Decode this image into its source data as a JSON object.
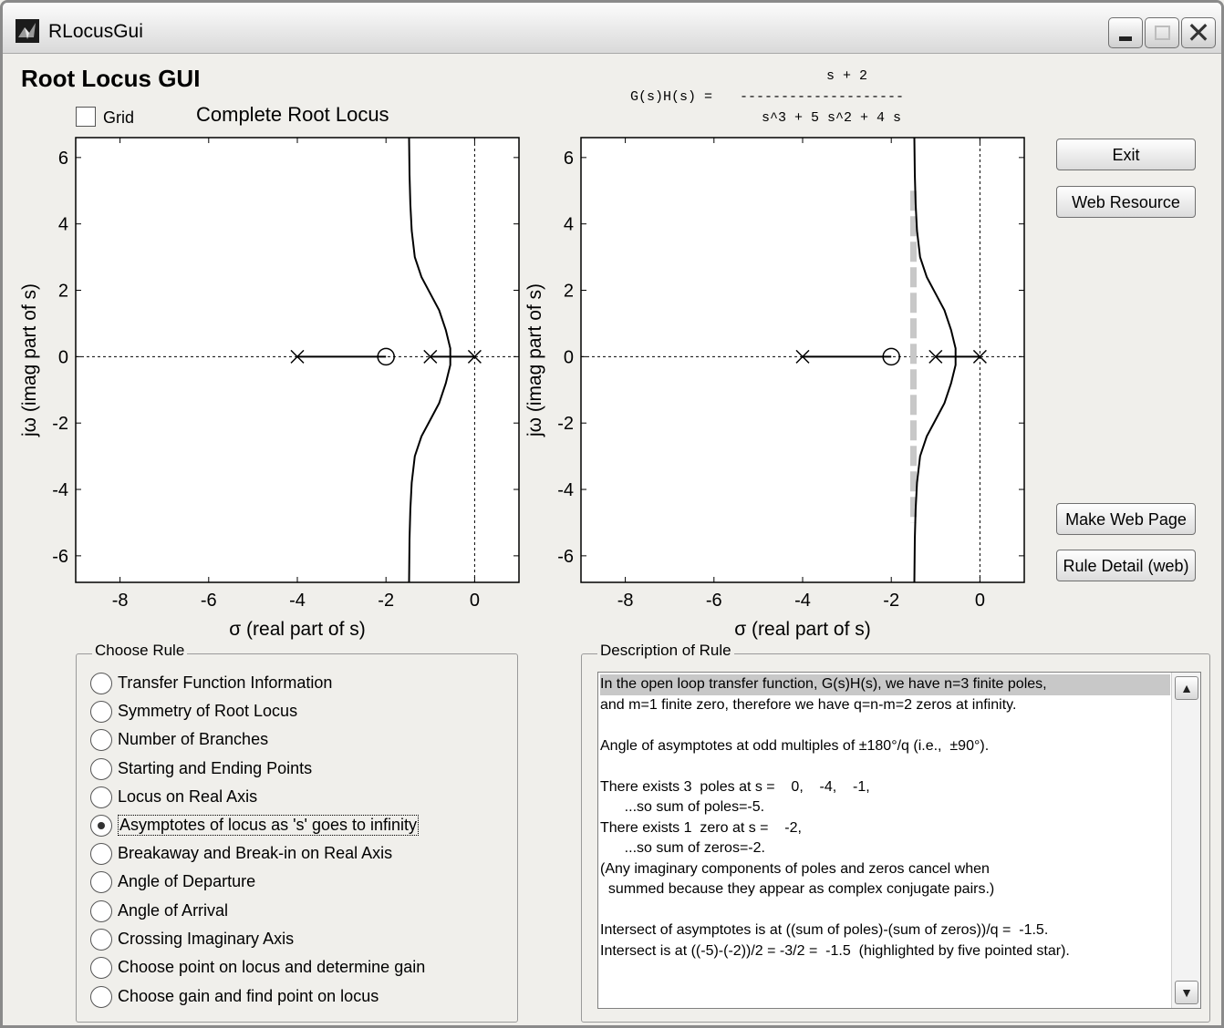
{
  "window": {
    "title": "RLocusGui",
    "controls": {
      "minimize": "minimize-icon",
      "maximize": "maximize-icon",
      "close": "close-icon"
    }
  },
  "header": {
    "title": "Root Locus GUI",
    "grid_label": "Grid",
    "grid_checked": false,
    "plot_heading": "Complete Root Locus",
    "transfer_function": {
      "label": "G(s)H(s) =",
      "numerator": "s + 2",
      "bar": "--------------------",
      "denominator": "s^3 + 5 s^2 + 4 s"
    }
  },
  "plot_labels": {
    "xlabel": "σ (real part of s)",
    "ylabel": "jω (imag part of s)"
  },
  "chart_data": [
    {
      "type": "line",
      "title": "",
      "xlabel": "σ (real part of s)",
      "ylabel": "jω (imag part of s)",
      "xlim": [
        -9,
        1
      ],
      "ylim": [
        -6.8,
        6.6
      ],
      "xticks": [
        -8,
        -6,
        -4,
        -2,
        0
      ],
      "yticks": [
        6,
        4,
        2,
        0,
        -2,
        -4,
        -6
      ],
      "grid": false,
      "poles": [
        [
          0,
          0
        ],
        [
          -4,
          0
        ],
        [
          -1,
          0
        ]
      ],
      "zeros": [
        [
          -2,
          0
        ]
      ],
      "branches": [
        {
          "x": [
            -4,
            -2
          ],
          "y": [
            0,
            0
          ]
        },
        {
          "x": [
            -1,
            -0.55
          ],
          "y": [
            0,
            0
          ]
        },
        {
          "x": [
            0,
            -0.55
          ],
          "y": [
            0,
            0
          ]
        },
        {
          "x": [
            -0.55,
            -0.55,
            -0.65,
            -0.8,
            -1.0,
            -1.2,
            -1.35,
            -1.42,
            -1.45,
            -1.47,
            -1.48
          ],
          "y": [
            0,
            0.25,
            0.8,
            1.4,
            1.9,
            2.4,
            3.0,
            3.8,
            4.6,
            5.5,
            6.6
          ]
        },
        {
          "x": [
            -0.55,
            -0.55,
            -0.65,
            -0.8,
            -1.0,
            -1.2,
            -1.35,
            -1.42,
            -1.45,
            -1.47,
            -1.48
          ],
          "y": [
            0,
            -0.25,
            -0.8,
            -1.4,
            -1.9,
            -2.4,
            -3.0,
            -3.8,
            -4.6,
            -5.5,
            -6.8
          ]
        }
      ]
    },
    {
      "type": "line",
      "title": "",
      "xlabel": "σ (real part of s)",
      "ylabel": "jω (imag part of s)",
      "xlim": [
        -9,
        1
      ],
      "ylim": [
        -6.8,
        6.6
      ],
      "xticks": [
        -8,
        -6,
        -4,
        -2,
        0
      ],
      "yticks": [
        6,
        4,
        2,
        0,
        -2,
        -4,
        -6
      ],
      "grid": false,
      "poles": [
        [
          0,
          0
        ],
        [
          -4,
          0
        ],
        [
          -1,
          0
        ]
      ],
      "zeros": [
        [
          -2,
          0
        ]
      ],
      "asymptote_x": -1.5,
      "asymptote_ylim": [
        -5,
        5
      ],
      "branches": [
        {
          "x": [
            -4,
            -2
          ],
          "y": [
            0,
            0
          ]
        },
        {
          "x": [
            -1,
            -0.55
          ],
          "y": [
            0,
            0
          ]
        },
        {
          "x": [
            0,
            -0.55
          ],
          "y": [
            0,
            0
          ]
        },
        {
          "x": [
            -0.55,
            -0.55,
            -0.65,
            -0.8,
            -1.0,
            -1.2,
            -1.35,
            -1.42,
            -1.45,
            -1.47,
            -1.48
          ],
          "y": [
            0,
            0.25,
            0.8,
            1.4,
            1.9,
            2.4,
            3.0,
            3.8,
            4.6,
            5.5,
            6.6
          ]
        },
        {
          "x": [
            -0.55,
            -0.55,
            -0.65,
            -0.8,
            -1.0,
            -1.2,
            -1.35,
            -1.42,
            -1.45,
            -1.47,
            -1.48
          ],
          "y": [
            0,
            -0.25,
            -0.8,
            -1.4,
            -1.9,
            -2.4,
            -3.0,
            -3.8,
            -4.6,
            -5.5,
            -6.8
          ]
        }
      ]
    }
  ],
  "buttons": {
    "exit": "Exit",
    "web_resource": "Web Resource",
    "make_web_page": "Make Web Page",
    "rule_detail": "Rule Detail (web)"
  },
  "rules": {
    "title": "Choose Rule",
    "selected_index": 5,
    "items": [
      "Transfer Function Information",
      "Symmetry of Root Locus",
      "Number of Branches",
      "Starting and Ending Points",
      "Locus on Real Axis",
      "Asymptotes of locus as 's' goes to infinity",
      "Breakaway and Break-in on Real Axis",
      "Angle of Departure",
      "Angle of Arrival",
      "Crossing Imaginary Axis",
      "Choose point on locus and determine gain",
      "Choose gain and find point on locus"
    ]
  },
  "description": {
    "title": "Description of Rule",
    "lines": [
      "In the open loop transfer function, G(s)H(s), we have n=3 finite poles,",
      "and m=1 finite zero, therefore we have q=n-m=2 zeros at infinity.",
      "",
      "Angle of asymptotes at odd multiples of ±180°/q (i.e.,  ±90°).",
      "",
      "There exists 3  poles at s =    0,    -4,    -1,",
      "      ...so sum of poles=-5.",
      "There exists 1  zero at s =    -2,",
      "      ...so sum of zeros=-2.",
      "(Any imaginary components of poles and zeros cancel when",
      "  summed because they appear as complex conjugate pairs.)",
      "",
      "Intersect of asymptotes is at ((sum of poles)-(sum of zeros))/q =  -1.5.",
      "Intersect is at ((-5)-(-2))/2 = -3/2 =  -1.5  (highlighted by five pointed star)."
    ]
  }
}
